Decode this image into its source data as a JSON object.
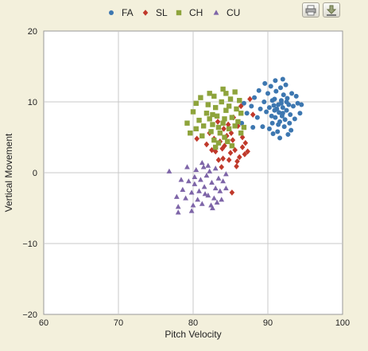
{
  "toolbar": {
    "print_icon": "printer-icon",
    "export_icon": "download-icon"
  },
  "chart_data": {
    "type": "scatter",
    "xlabel": "Pitch Velocity",
    "ylabel": "Vertical Movement",
    "xlim": [
      60,
      100
    ],
    "ylim": [
      -20,
      20
    ],
    "xticks": [
      60,
      70,
      80,
      90,
      100
    ],
    "yticks": [
      -20,
      -10,
      0,
      10,
      20
    ],
    "grid": true,
    "legend": "top-center",
    "series": [
      {
        "name": "FA",
        "color": "#3d77b0",
        "marker": "circle",
        "points": [
          [
            91.5,
            8.5
          ],
          [
            92.0,
            9.2
          ],
          [
            91.0,
            7.8
          ],
          [
            92.5,
            8.8
          ],
          [
            90.8,
            9.5
          ],
          [
            91.8,
            10.2
          ],
          [
            92.3,
            7.5
          ],
          [
            90.5,
            8.0
          ],
          [
            91.2,
            9.0
          ],
          [
            92.8,
            9.6
          ],
          [
            91.6,
            7.2
          ],
          [
            90.9,
            10.4
          ],
          [
            92.1,
            11.0
          ],
          [
            91.4,
            6.8
          ],
          [
            93.0,
            8.2
          ],
          [
            90.2,
            9.2
          ],
          [
            91.9,
            8.0
          ],
          [
            92.6,
            10.5
          ],
          [
            91.1,
            11.5
          ],
          [
            89.8,
            8.6
          ],
          [
            93.4,
            9.4
          ],
          [
            90.6,
            7.0
          ],
          [
            92.2,
            6.5
          ],
          [
            91.7,
            12.0
          ],
          [
            89.5,
            10.0
          ],
          [
            93.2,
            11.2
          ],
          [
            90.0,
            11.2
          ],
          [
            92.9,
            7.0
          ],
          [
            91.3,
            5.8
          ],
          [
            94.0,
            9.8
          ],
          [
            89.0,
            9.0
          ],
          [
            88.6,
            7.8
          ],
          [
            88.2,
            10.6
          ],
          [
            90.4,
            12.2
          ],
          [
            92.4,
            12.4
          ],
          [
            93.6,
            7.6
          ],
          [
            89.3,
            6.5
          ],
          [
            91.0,
            13.0
          ],
          [
            94.3,
            8.4
          ],
          [
            87.8,
            9.4
          ],
          [
            90.7,
            5.5
          ],
          [
            92.7,
            5.4
          ],
          [
            88.8,
            11.6
          ],
          [
            93.8,
            10.8
          ],
          [
            86.5,
            7.0
          ],
          [
            87.2,
            8.4
          ],
          [
            89.6,
            12.6
          ],
          [
            92.0,
            13.2
          ],
          [
            94.5,
            9.6
          ],
          [
            91.6,
            4.9
          ],
          [
            90.2,
            6.2
          ],
          [
            93.1,
            6.0
          ],
          [
            88.0,
            6.4
          ],
          [
            86.8,
            9.8
          ],
          [
            91.8,
            9.8
          ],
          [
            90.9,
            8.8
          ],
          [
            92.5,
            10.0
          ],
          [
            91.4,
            9.6
          ],
          [
            90.6,
            10.2
          ],
          [
            92.0,
            8.4
          ]
        ]
      },
      {
        "name": "SL",
        "color": "#c0392b",
        "marker": "diamond",
        "points": [
          [
            84.2,
            3.8
          ],
          [
            85.0,
            2.8
          ],
          [
            83.6,
            4.4
          ],
          [
            85.6,
            3.2
          ],
          [
            84.8,
            1.8
          ],
          [
            86.2,
            2.2
          ],
          [
            83.0,
            3.0
          ],
          [
            85.3,
            4.6
          ],
          [
            84.0,
            2.0
          ],
          [
            86.6,
            3.6
          ],
          [
            82.8,
            4.8
          ],
          [
            85.9,
            1.6
          ],
          [
            84.5,
            5.2
          ],
          [
            86.9,
            2.6
          ],
          [
            83.4,
            1.8
          ],
          [
            87.0,
            4.2
          ],
          [
            85.1,
            5.6
          ],
          [
            84.1,
            6.2
          ],
          [
            86.0,
            6.6
          ],
          [
            82.2,
            5.6
          ],
          [
            83.8,
            0.8
          ],
          [
            87.3,
            3.0
          ],
          [
            81.8,
            4.0
          ],
          [
            85.8,
            0.9
          ],
          [
            88.0,
            8.2
          ],
          [
            86.4,
            9.4
          ],
          [
            87.6,
            10.4
          ],
          [
            80.5,
            4.8
          ],
          [
            85.2,
            -2.8
          ],
          [
            83.3,
            7.2
          ],
          [
            82.5,
            3.2
          ],
          [
            86.6,
            5.0
          ],
          [
            84.7,
            6.8
          ],
          [
            85.4,
            7.8
          ],
          [
            83.9,
            3.4
          ]
        ]
      },
      {
        "name": "CH",
        "color": "#8ea43c",
        "marker": "square",
        "points": [
          [
            84.0,
            7.0
          ],
          [
            83.2,
            8.0
          ],
          [
            84.8,
            6.2
          ],
          [
            82.6,
            6.8
          ],
          [
            85.2,
            7.8
          ],
          [
            83.6,
            5.6
          ],
          [
            84.4,
            8.8
          ],
          [
            82.2,
            7.6
          ],
          [
            85.6,
            6.6
          ],
          [
            83.0,
            9.2
          ],
          [
            84.2,
            5.0
          ],
          [
            81.8,
            8.4
          ],
          [
            85.8,
            9.0
          ],
          [
            82.4,
            5.8
          ],
          [
            86.0,
            7.2
          ],
          [
            83.8,
            10.0
          ],
          [
            81.4,
            6.6
          ],
          [
            84.6,
            4.4
          ],
          [
            85.0,
            10.4
          ],
          [
            82.0,
            9.6
          ],
          [
            86.4,
            8.4
          ],
          [
            80.8,
            7.4
          ],
          [
            83.4,
            4.2
          ],
          [
            84.4,
            11.2
          ],
          [
            81.2,
            5.2
          ],
          [
            86.4,
            5.6
          ],
          [
            82.8,
            10.8
          ],
          [
            80.4,
            6.2
          ],
          [
            83.0,
            3.6
          ],
          [
            85.6,
            11.4
          ],
          [
            80.0,
            8.6
          ],
          [
            86.8,
            6.4
          ],
          [
            82.2,
            11.2
          ],
          [
            84.0,
            11.8
          ],
          [
            79.6,
            5.6
          ],
          [
            80.4,
            9.8
          ],
          [
            85.2,
            3.8
          ],
          [
            79.2,
            7.0
          ],
          [
            81.0,
            10.6
          ],
          [
            86.2,
            10.2
          ],
          [
            82.8,
            4.6
          ],
          [
            84.8,
            9.4
          ],
          [
            83.4,
            6.4
          ],
          [
            84.2,
            7.6
          ],
          [
            82.6,
            8.2
          ]
        ]
      },
      {
        "name": "CU",
        "color": "#7e65a8",
        "marker": "triangle",
        "points": [
          [
            81.5,
            -2.0
          ],
          [
            82.5,
            -1.4
          ],
          [
            80.8,
            -2.6
          ],
          [
            83.0,
            -2.2
          ],
          [
            81.0,
            -1.0
          ],
          [
            82.0,
            -3.2
          ],
          [
            83.4,
            -0.8
          ],
          [
            80.2,
            -1.6
          ],
          [
            81.8,
            -0.4
          ],
          [
            82.8,
            -3.6
          ],
          [
            79.8,
            -2.8
          ],
          [
            83.6,
            -2.6
          ],
          [
            80.6,
            -3.8
          ],
          [
            82.2,
            0.2
          ],
          [
            81.2,
            -4.4
          ],
          [
            79.4,
            -1.2
          ],
          [
            83.8,
            -3.8
          ],
          [
            80.0,
            -4.6
          ],
          [
            78.6,
            -2.4
          ],
          [
            82.4,
            -4.6
          ],
          [
            84.0,
            -1.2
          ],
          [
            81.4,
            0.8
          ],
          [
            79.0,
            -3.6
          ],
          [
            80.4,
            0.4
          ],
          [
            83.2,
            -4.2
          ],
          [
            78.4,
            -1.0
          ],
          [
            84.4,
            -2.2
          ],
          [
            79.8,
            -5.4
          ],
          [
            81.2,
            1.4
          ],
          [
            78.0,
            -5.6
          ],
          [
            80.2,
            -0.6
          ],
          [
            82.6,
            -5.0
          ],
          [
            77.8,
            -3.4
          ],
          [
            78.0,
            -4.8
          ],
          [
            76.8,
            0.2
          ],
          [
            79.2,
            0.8
          ],
          [
            82.0,
            1.0
          ],
          [
            83.0,
            0.6
          ],
          [
            84.4,
            -0.2
          ],
          [
            81.6,
            -3.0
          ]
        ]
      }
    ]
  }
}
